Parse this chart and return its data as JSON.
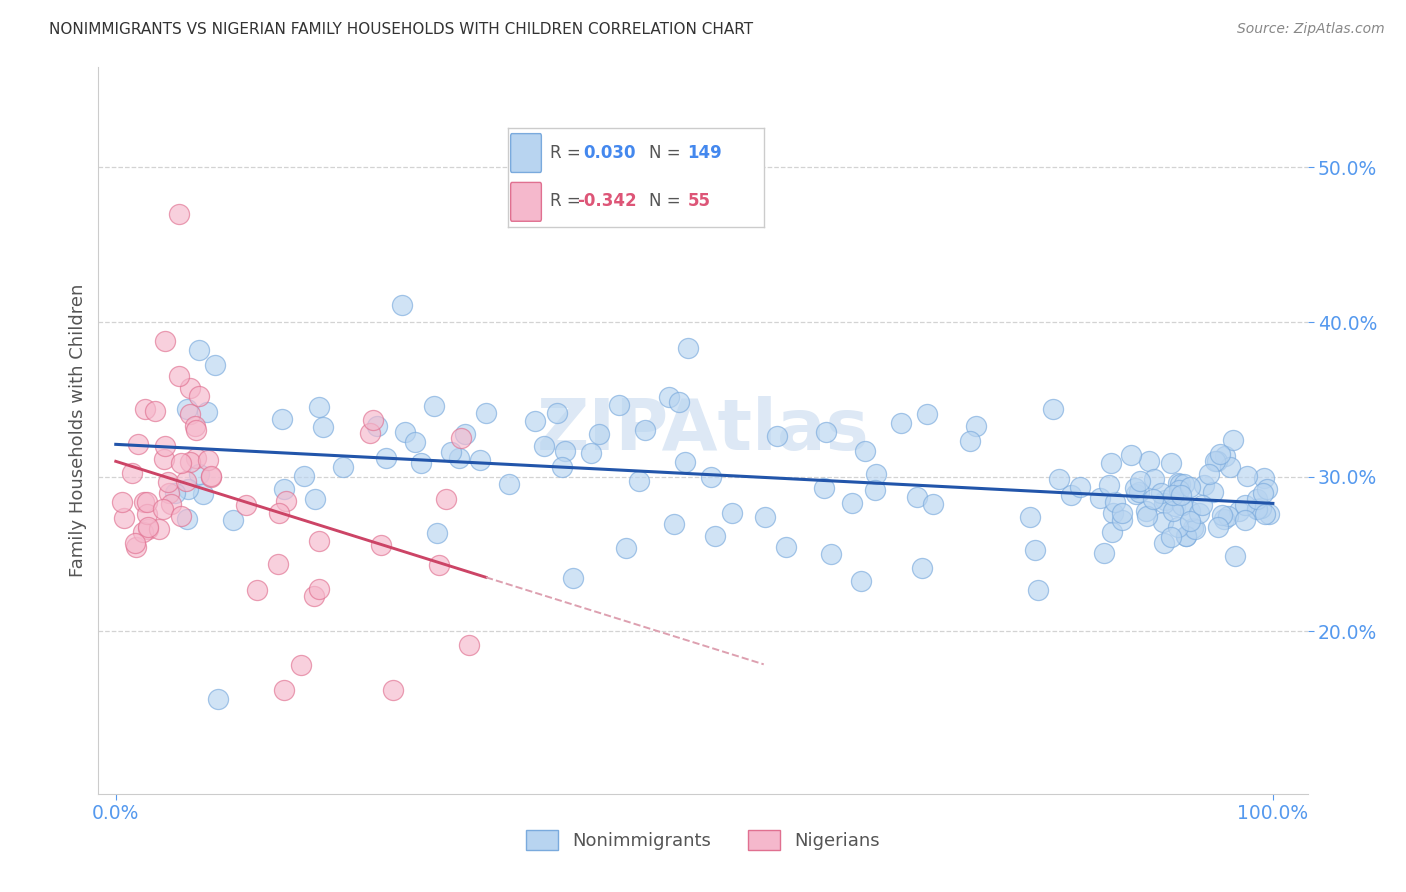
{
  "title": "NONIMMIGRANTS VS NIGERIAN FAMILY HOUSEHOLDS WITH CHILDREN CORRELATION CHART",
  "source": "Source: ZipAtlas.com",
  "ylabel_label": "Family Households with Children",
  "axis_color": "#5599ee",
  "title_color": "#333333",
  "source_color": "#888888",
  "background_color": "#ffffff",
  "grid_color": "#cccccc",
  "blue_face": "#b8d4f0",
  "blue_edge": "#7aaadd",
  "pink_face": "#f5b8cc",
  "pink_edge": "#e07090",
  "trend_blue": "#2255aa",
  "trend_pink_solid": "#cc4466",
  "trend_pink_dash": "#dda0b0",
  "legend_val_blue": "#4488ee",
  "legend_val_pink": "#dd5577",
  "legend_label": "#555555",
  "ytick_vals": [
    0.2,
    0.3,
    0.4,
    0.5
  ],
  "ytick_labels": [
    "20.0%",
    "30.0%",
    "40.0%",
    "50.0%"
  ],
  "xtick_vals": [
    0.0,
    1.0
  ],
  "xtick_labels": [
    "0.0%",
    "100.0%"
  ],
  "xlim": [
    -0.015,
    1.03
  ],
  "ylim": [
    0.095,
    0.565
  ],
  "R1": "0.030",
  "N1": "149",
  "R2": "-0.342",
  "N2": "55",
  "watermark": "ZIPAtlas",
  "watermark_color": "#dde8f5"
}
